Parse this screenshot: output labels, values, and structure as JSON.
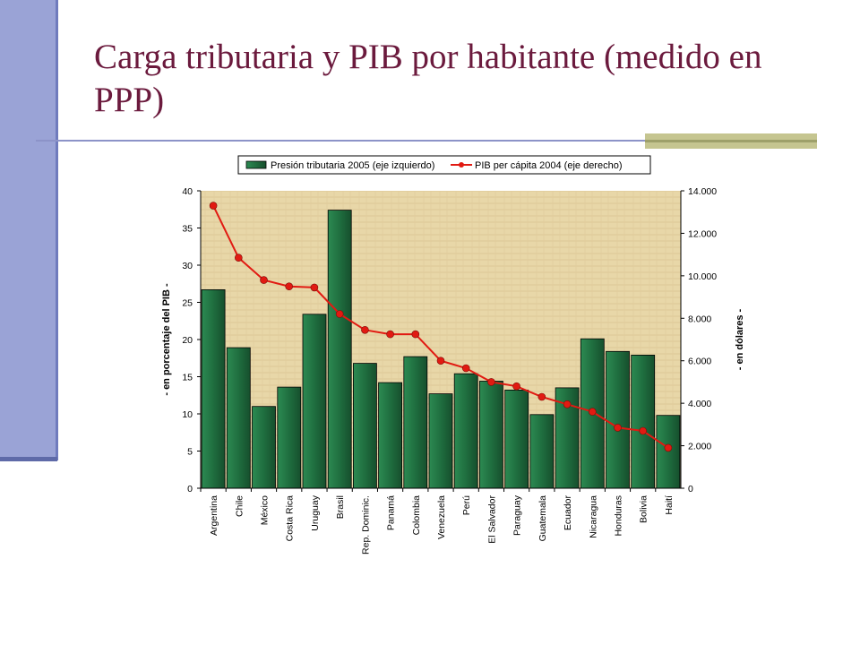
{
  "slide": {
    "title": "Carga tributaria y PIB por habitante (medido en PPP)"
  },
  "colors": {
    "bar_fill": "#1f6e3f",
    "line": "#e11a12",
    "plot_bg": "#e8d7a8",
    "title_text": "#6b1a3d"
  },
  "chart_data": {
    "type": "bar",
    "categories": [
      "Argentina",
      "Chile",
      "México",
      "Costa Rica",
      "Uruguay",
      "Brasil",
      "Rep. Dominic.",
      "Panamá",
      "Colombia",
      "Venezuela",
      "Perú",
      "El Salvador",
      "Paraguay",
      "Guatemala",
      "Ecuador",
      "Nicaragua",
      "Honduras",
      "Bolivia",
      "Haití"
    ],
    "series": [
      {
        "name": "Presión tributaria 2005 (eje izquierdo)",
        "kind": "bar",
        "axis": "left",
        "values": [
          26.7,
          18.9,
          11.0,
          13.6,
          23.4,
          37.4,
          16.8,
          14.2,
          17.7,
          12.7,
          15.4,
          14.4,
          13.2,
          9.9,
          13.5,
          20.1,
          18.4,
          17.9,
          9.8
        ]
      },
      {
        "name": "PIB per cápita 2004 (eje derecho)",
        "kind": "line",
        "axis": "right",
        "values": [
          13300,
          10850,
          9800,
          9500,
          9450,
          8200,
          7450,
          7250,
          7250,
          6000,
          5650,
          5000,
          4800,
          4300,
          3950,
          3600,
          2850,
          2700,
          1900
        ]
      }
    ],
    "ylabel_left": "- en porcentaje del PIB -",
    "ylabel_right": "- en dólares -",
    "ylim_left": [
      0,
      40
    ],
    "ylim_right": [
      0,
      14000
    ],
    "yticks_left": [
      "0",
      "5",
      "10",
      "15",
      "20",
      "25",
      "30",
      "35",
      "40"
    ],
    "yticks_right": [
      "0",
      "2.000",
      "4.000",
      "6.000",
      "8.000",
      "10.000",
      "12.000",
      "14.000"
    ],
    "legend_position": "top",
    "grid": false
  }
}
